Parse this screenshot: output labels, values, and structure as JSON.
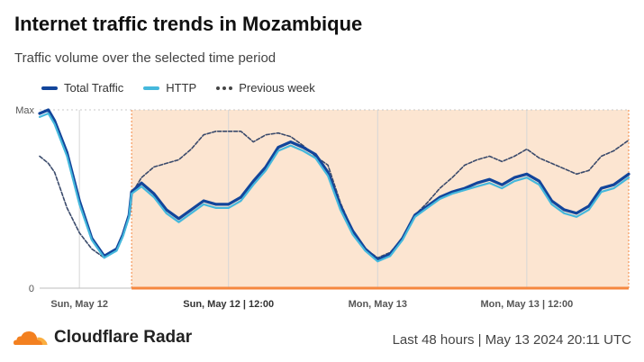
{
  "title": "Internet traffic trends in Mozambique",
  "subtitle": "Traffic volume over the selected time period",
  "legend": {
    "total": "Total Traffic",
    "http": "HTTP",
    "previous": "Previous week"
  },
  "colors": {
    "total": "#12459b",
    "http": "#45b8dc",
    "previous": "#3a4a6b",
    "highlight_fill": "#fce5d1",
    "highlight_bar": "#f5873f",
    "brand_orange": "#f38020"
  },
  "footer": {
    "brand": "Cloudflare Radar",
    "range": "Last 48 hours | May 13 2024 20:11 UTC"
  },
  "chart_data": {
    "type": "line",
    "y_ticks": [
      "Max",
      "0"
    ],
    "ylim": [
      0,
      1
    ],
    "x_unit": "hours since Sun, May 12 00:00 UTC",
    "xlim": [
      -3.2,
      44.2
    ],
    "x_ticks": [
      {
        "x": 0,
        "label": "Sun, May 12"
      },
      {
        "x": 12,
        "label": "Sun, May 12 | 12:00"
      },
      {
        "x": 24,
        "label": "Mon, May 13"
      },
      {
        "x": 36,
        "label": "Mon, May 13 | 12:00"
      }
    ],
    "highlight_range": [
      4.2,
      44.2
    ],
    "grid": true,
    "series": [
      {
        "name": "Total Traffic",
        "x": [
          -3.2,
          -2.5,
          -2,
          -1,
          0,
          1,
          2,
          3,
          3.5,
          4,
          4.2,
          5,
          6,
          7,
          8,
          9,
          10,
          11,
          12,
          13,
          14,
          15,
          16,
          17,
          18,
          19,
          20,
          21,
          22,
          23,
          24,
          25,
          26,
          27,
          28,
          29,
          30,
          31,
          32,
          33,
          34,
          35,
          36,
          37,
          38,
          39,
          40,
          41,
          42,
          43,
          44.2
        ],
        "values": [
          0.98,
          1.0,
          0.94,
          0.76,
          0.49,
          0.28,
          0.18,
          0.22,
          0.3,
          0.41,
          0.54,
          0.59,
          0.53,
          0.44,
          0.39,
          0.44,
          0.49,
          0.47,
          0.47,
          0.51,
          0.6,
          0.68,
          0.79,
          0.82,
          0.79,
          0.75,
          0.65,
          0.46,
          0.32,
          0.22,
          0.16,
          0.19,
          0.28,
          0.41,
          0.46,
          0.51,
          0.54,
          0.56,
          0.59,
          0.61,
          0.58,
          0.62,
          0.64,
          0.6,
          0.49,
          0.44,
          0.42,
          0.46,
          0.56,
          0.58,
          0.64
        ]
      },
      {
        "name": "HTTP",
        "x": [
          -3.2,
          -2.5,
          -2,
          -1,
          0,
          1,
          2,
          3,
          3.5,
          4,
          4.2,
          5,
          6,
          7,
          8,
          9,
          10,
          11,
          12,
          13,
          14,
          15,
          16,
          17,
          18,
          19,
          20,
          21,
          22,
          23,
          24,
          25,
          26,
          27,
          28,
          29,
          30,
          31,
          32,
          33,
          34,
          35,
          36,
          37,
          38,
          39,
          40,
          41,
          42,
          43,
          44.2
        ],
        "values": [
          0.96,
          0.98,
          0.92,
          0.74,
          0.47,
          0.27,
          0.17,
          0.21,
          0.29,
          0.4,
          0.53,
          0.57,
          0.51,
          0.42,
          0.37,
          0.42,
          0.47,
          0.45,
          0.45,
          0.49,
          0.58,
          0.66,
          0.77,
          0.8,
          0.77,
          0.73,
          0.63,
          0.44,
          0.3,
          0.21,
          0.15,
          0.18,
          0.27,
          0.4,
          0.45,
          0.5,
          0.53,
          0.55,
          0.57,
          0.59,
          0.56,
          0.6,
          0.62,
          0.58,
          0.47,
          0.42,
          0.4,
          0.44,
          0.54,
          0.56,
          0.62
        ]
      },
      {
        "name": "Previous week",
        "x": [
          -3.2,
          -2.5,
          -2,
          -1,
          0,
          1,
          2,
          3,
          3.5,
          4,
          4.2,
          5,
          6,
          7,
          8,
          9,
          10,
          11,
          12,
          13,
          14,
          15,
          16,
          17,
          18,
          19,
          20,
          21,
          22,
          23,
          24,
          25,
          26,
          27,
          28,
          29,
          30,
          31,
          32,
          33,
          34,
          35,
          36,
          37,
          38,
          39,
          40,
          41,
          42,
          43,
          44.2
        ],
        "values": [
          0.74,
          0.7,
          0.65,
          0.45,
          0.31,
          0.22,
          0.17,
          0.21,
          0.29,
          0.4,
          0.53,
          0.62,
          0.68,
          0.7,
          0.72,
          0.78,
          0.86,
          0.88,
          0.88,
          0.88,
          0.82,
          0.86,
          0.87,
          0.85,
          0.8,
          0.74,
          0.69,
          0.48,
          0.32,
          0.22,
          0.17,
          0.2,
          0.28,
          0.41,
          0.48,
          0.56,
          0.62,
          0.69,
          0.72,
          0.74,
          0.71,
          0.74,
          0.78,
          0.73,
          0.7,
          0.67,
          0.64,
          0.66,
          0.74,
          0.77,
          0.83
        ]
      }
    ]
  }
}
